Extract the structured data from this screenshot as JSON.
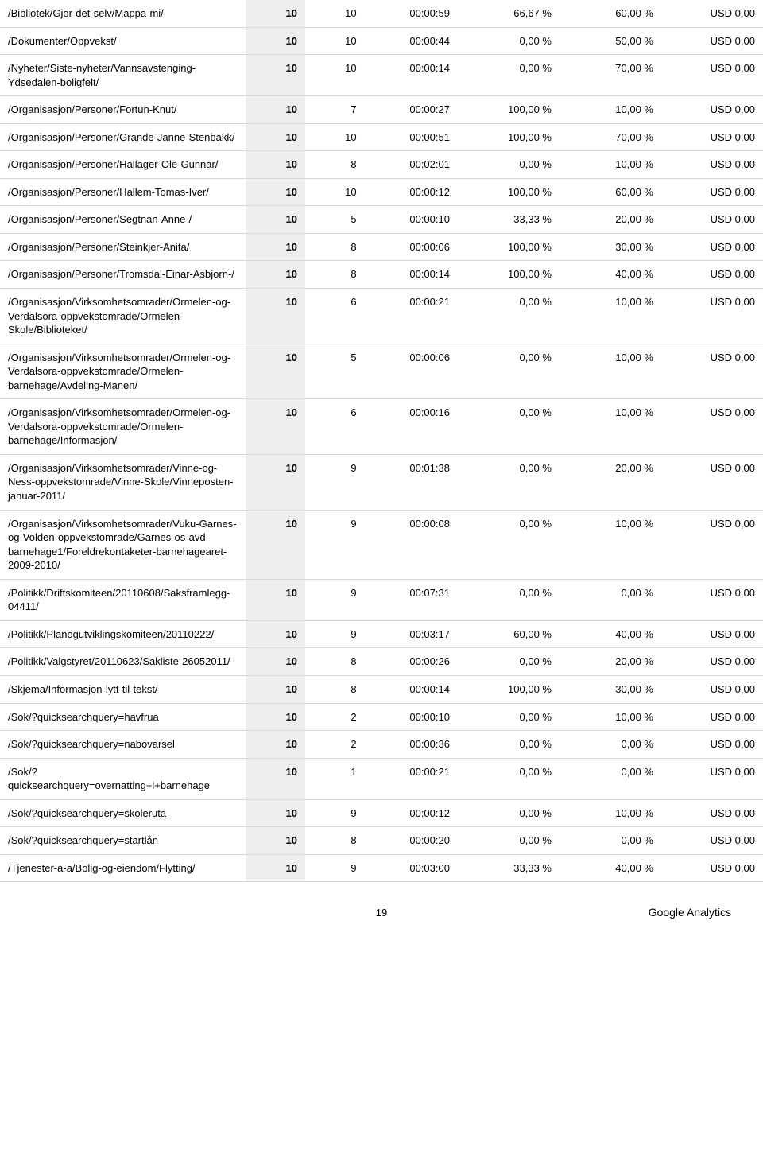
{
  "footer": {
    "page_number": "19",
    "brand": "Google Analytics"
  },
  "colors": {
    "row_border": "#d9d9d9",
    "col_highlight_bg": "#eeeeee",
    "text": "#000000",
    "background": "#ffffff"
  },
  "table": {
    "columns": [
      "page_path",
      "metric_a",
      "metric_b",
      "avg_time",
      "pct_a",
      "pct_b",
      "value"
    ],
    "column_align": [
      "left",
      "right",
      "right",
      "right",
      "right",
      "right",
      "right"
    ],
    "rows": [
      {
        "page": "/Bibliotek/Gjor-det-selv/Mappa-mi/",
        "a": "10",
        "b": "10",
        "time": "00:00:59",
        "p1": "66,67 %",
        "p2": "60,00 %",
        "val": "USD 0,00"
      },
      {
        "page": "/Dokumenter/Oppvekst/",
        "a": "10",
        "b": "10",
        "time": "00:00:44",
        "p1": "0,00 %",
        "p2": "50,00 %",
        "val": "USD 0,00"
      },
      {
        "page": "/Nyheter/Siste-nyheter/Vannsavstenging-Ydsedalen-boligfelt/",
        "a": "10",
        "b": "10",
        "time": "00:00:14",
        "p1": "0,00 %",
        "p2": "70,00 %",
        "val": "USD 0,00"
      },
      {
        "page": "/Organisasjon/Personer/Fortun-Knut/",
        "a": "10",
        "b": "7",
        "time": "00:00:27",
        "p1": "100,00 %",
        "p2": "10,00 %",
        "val": "USD 0,00"
      },
      {
        "page": "/Organisasjon/Personer/Grande-Janne-Stenbakk/",
        "a": "10",
        "b": "10",
        "time": "00:00:51",
        "p1": "100,00 %",
        "p2": "70,00 %",
        "val": "USD 0,00"
      },
      {
        "page": "/Organisasjon/Personer/Hallager-Ole-Gunnar/",
        "a": "10",
        "b": "8",
        "time": "00:02:01",
        "p1": "0,00 %",
        "p2": "10,00 %",
        "val": "USD 0,00"
      },
      {
        "page": "/Organisasjon/Personer/Hallem-Tomas-Iver/",
        "a": "10",
        "b": "10",
        "time": "00:00:12",
        "p1": "100,00 %",
        "p2": "60,00 %",
        "val": "USD 0,00"
      },
      {
        "page": "/Organisasjon/Personer/Segtnan-Anne-/",
        "a": "10",
        "b": "5",
        "time": "00:00:10",
        "p1": "33,33 %",
        "p2": "20,00 %",
        "val": "USD 0,00"
      },
      {
        "page": "/Organisasjon/Personer/Steinkjer-Anita/",
        "a": "10",
        "b": "8",
        "time": "00:00:06",
        "p1": "100,00 %",
        "p2": "30,00 %",
        "val": "USD 0,00"
      },
      {
        "page": "/Organisasjon/Personer/Tromsdal-Einar-Asbjorn-/",
        "a": "10",
        "b": "8",
        "time": "00:00:14",
        "p1": "100,00 %",
        "p2": "40,00 %",
        "val": "USD 0,00"
      },
      {
        "page": "/Organisasjon/Virksomhetsomrader/Ormelen-og-Verdalsora-oppvekstomrade/Ormelen-Skole/Biblioteket/",
        "a": "10",
        "b": "6",
        "time": "00:00:21",
        "p1": "0,00 %",
        "p2": "10,00 %",
        "val": "USD 0,00"
      },
      {
        "page": "/Organisasjon/Virksomhetsomrader/Ormelen-og-Verdalsora-oppvekstomrade/Ormelen-barnehage/Avdeling-Manen/",
        "a": "10",
        "b": "5",
        "time": "00:00:06",
        "p1": "0,00 %",
        "p2": "10,00 %",
        "val": "USD 0,00"
      },
      {
        "page": "/Organisasjon/Virksomhetsomrader/Ormelen-og-Verdalsora-oppvekstomrade/Ormelen-barnehage/Informasjon/",
        "a": "10",
        "b": "6",
        "time": "00:00:16",
        "p1": "0,00 %",
        "p2": "10,00 %",
        "val": "USD 0,00"
      },
      {
        "page": "/Organisasjon/Virksomhetsomrader/Vinne-og-Ness-oppvekstomrade/Vinne-Skole/Vinneposten-januar-2011/",
        "a": "10",
        "b": "9",
        "time": "00:01:38",
        "p1": "0,00 %",
        "p2": "20,00 %",
        "val": "USD 0,00"
      },
      {
        "page": "/Organisasjon/Virksomhetsomrader/Vuku-Garnes-og-Volden-oppvekstomrade/Garnes-os-avd-barnehage1/Foreldrekontaketer-barnehagearet-2009-2010/",
        "a": "10",
        "b": "9",
        "time": "00:00:08",
        "p1": "0,00 %",
        "p2": "10,00 %",
        "val": "USD 0,00"
      },
      {
        "page": "/Politikk/Driftskomiteen/20110608/Saksframlegg-04411/",
        "a": "10",
        "b": "9",
        "time": "00:07:31",
        "p1": "0,00 %",
        "p2": "0,00 %",
        "val": "USD 0,00"
      },
      {
        "page": "/Politikk/Planogutviklingskomiteen/20110222/",
        "a": "10",
        "b": "9",
        "time": "00:03:17",
        "p1": "60,00 %",
        "p2": "40,00 %",
        "val": "USD 0,00"
      },
      {
        "page": "/Politikk/Valgstyret/20110623/Sakliste-26052011/",
        "a": "10",
        "b": "8",
        "time": "00:00:26",
        "p1": "0,00 %",
        "p2": "20,00 %",
        "val": "USD 0,00"
      },
      {
        "page": "/Skjema/Informasjon-lytt-til-tekst/",
        "a": "10",
        "b": "8",
        "time": "00:00:14",
        "p1": "100,00 %",
        "p2": "30,00 %",
        "val": "USD 0,00"
      },
      {
        "page": "/Sok/?quicksearchquery=havfrua",
        "a": "10",
        "b": "2",
        "time": "00:00:10",
        "p1": "0,00 %",
        "p2": "10,00 %",
        "val": "USD 0,00"
      },
      {
        "page": "/Sok/?quicksearchquery=nabovarsel",
        "a": "10",
        "b": "2",
        "time": "00:00:36",
        "p1": "0,00 %",
        "p2": "0,00 %",
        "val": "USD 0,00"
      },
      {
        "page": "/Sok/?quicksearchquery=overnatting+i+barnehage",
        "a": "10",
        "b": "1",
        "time": "00:00:21",
        "p1": "0,00 %",
        "p2": "0,00 %",
        "val": "USD 0,00"
      },
      {
        "page": "/Sok/?quicksearchquery=skoleruta",
        "a": "10",
        "b": "9",
        "time": "00:00:12",
        "p1": "0,00 %",
        "p2": "10,00 %",
        "val": "USD 0,00"
      },
      {
        "page": "/Sok/?quicksearchquery=startlån",
        "a": "10",
        "b": "8",
        "time": "00:00:20",
        "p1": "0,00 %",
        "p2": "0,00 %",
        "val": "USD 0,00"
      },
      {
        "page": "/Tjenester-a-a/Bolig-og-eiendom/Flytting/",
        "a": "10",
        "b": "9",
        "time": "00:03:00",
        "p1": "33,33 %",
        "p2": "40,00 %",
        "val": "USD 0,00"
      }
    ]
  }
}
